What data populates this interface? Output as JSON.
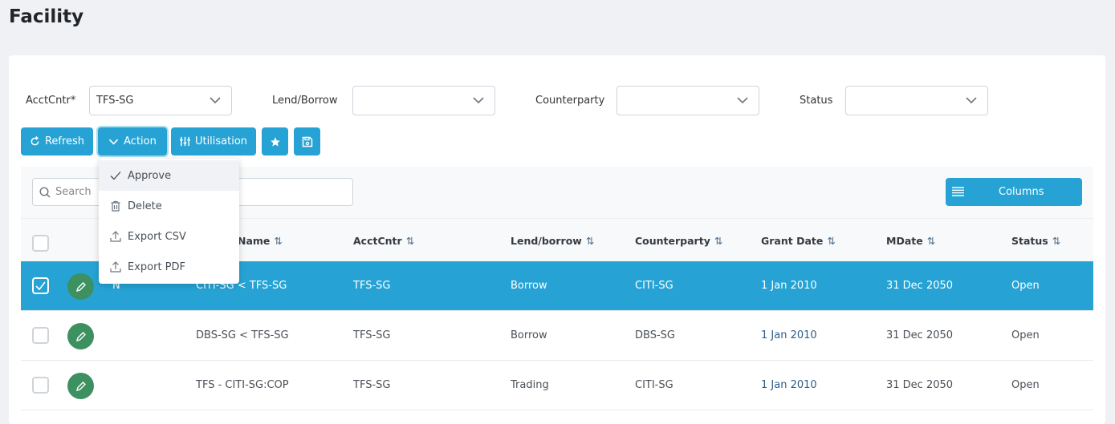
{
  "page": {
    "title": "Facility"
  },
  "filters": [
    {
      "label": "AcctCntr*",
      "value": "TFS-SG"
    },
    {
      "label": "Lend/Borrow",
      "value": ""
    },
    {
      "label": "Counterparty",
      "value": ""
    },
    {
      "label": "Status",
      "value": ""
    }
  ],
  "toolbar": {
    "refresh": "Refresh",
    "action": "Action",
    "utilisation": "Utilisation"
  },
  "action_menu": [
    {
      "label": "Approve",
      "icon": "check-icon"
    },
    {
      "label": "Delete",
      "icon": "trash-icon"
    },
    {
      "label": "Export CSV",
      "icon": "upload-icon"
    },
    {
      "label": "Export PDF",
      "icon": "upload-icon"
    }
  ],
  "table": {
    "search_placeholder": "Search",
    "columns_button": "Columns",
    "headers": [
      "Name",
      "AcctCntr",
      "Lend/borrow",
      "Counterparty",
      "Grant Date",
      "MDate",
      "Status"
    ],
    "rows": [
      {
        "selected": true,
        "flag": "N",
        "name": "CITI-SG < TFS-SG",
        "acct": "TFS-SG",
        "lend": "Borrow",
        "cp": "CITI-SG",
        "grant": "1 Jan 2010",
        "mdate": "31 Dec 2050",
        "status": "Open"
      },
      {
        "selected": false,
        "flag": "",
        "name": "DBS-SG < TFS-SG",
        "acct": "TFS-SG",
        "lend": "Borrow",
        "cp": "DBS-SG",
        "grant": "1 Jan 2010",
        "mdate": "31 Dec 2050",
        "status": "Open"
      },
      {
        "selected": false,
        "flag": "",
        "name": "TFS - CITI-SG:COP",
        "acct": "TFS-SG",
        "lend": "Trading",
        "cp": "CITI-SG",
        "grant": "1 Jan 2010",
        "mdate": "31 Dec 2050",
        "status": "Open"
      }
    ]
  },
  "colors": {
    "accent": "#26a3d4",
    "edit": "#3d9160"
  }
}
